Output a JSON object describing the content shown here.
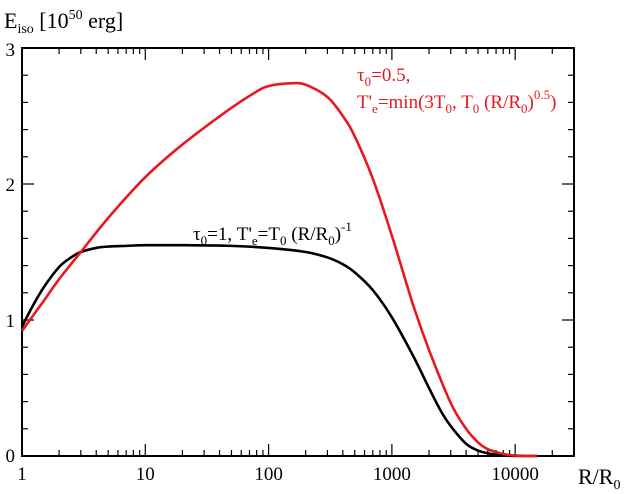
{
  "chart_data": {
    "type": "line",
    "xscale": "log",
    "xlim": [
      1,
      30000
    ],
    "ylim": [
      0,
      3
    ],
    "xlabel": {
      "main": "R/R",
      "sub": "0"
    },
    "ylabel": {
      "main": "E",
      "sub": "iso",
      "unit_pre": " [10",
      "sup": "50",
      "unit_post": " erg]"
    },
    "xticks": [
      {
        "value": 1,
        "label": "1"
      },
      {
        "value": 10,
        "label": "10"
      },
      {
        "value": 100,
        "label": "100"
      },
      {
        "value": 1000,
        "label": "1000"
      },
      {
        "value": 10000,
        "label": "10000"
      }
    ],
    "yticks": [
      {
        "value": 0,
        "label": "0"
      },
      {
        "value": 1,
        "label": "1"
      },
      {
        "value": 2,
        "label": "2"
      },
      {
        "value": 3,
        "label": "3"
      }
    ],
    "series": [
      {
        "name": "tau0=1, T'e=T0 (R/R0)^-1",
        "color": "#000000",
        "x": [
          1,
          1.2,
          1.5,
          2,
          2.5,
          3,
          4,
          5,
          7,
          10,
          20,
          50,
          100,
          200,
          300,
          400,
          500,
          700,
          1000,
          1500,
          2000,
          2500,
          3000,
          4000,
          5000,
          6000,
          7000,
          8000,
          9000,
          10000,
          12000,
          15000
        ],
        "values": [
          0.95,
          1.09,
          1.24,
          1.39,
          1.46,
          1.5,
          1.53,
          1.54,
          1.545,
          1.55,
          1.55,
          1.545,
          1.53,
          1.5,
          1.46,
          1.41,
          1.35,
          1.22,
          1.02,
          0.73,
          0.5,
          0.33,
          0.22,
          0.09,
          0.04,
          0.02,
          0.01,
          0.005,
          0.002,
          0.001,
          0.0,
          0.0
        ]
      },
      {
        "name": "tau0=0.5, T'e=min(3T0, T0 (R/R0)^0.5)",
        "color": "#e8191e",
        "x": [
          1,
          1.5,
          2,
          3,
          5,
          10,
          20,
          50,
          80,
          100,
          150,
          200,
          300,
          400,
          500,
          700,
          1000,
          1500,
          2000,
          3000,
          4000,
          5000,
          6000,
          7000,
          8000,
          9000,
          10000,
          12000,
          15000
        ],
        "values": [
          0.92,
          1.14,
          1.3,
          1.5,
          1.75,
          2.05,
          2.29,
          2.56,
          2.68,
          2.72,
          2.74,
          2.73,
          2.64,
          2.5,
          2.35,
          2.04,
          1.62,
          1.1,
          0.78,
          0.39,
          0.2,
          0.1,
          0.05,
          0.03,
          0.015,
          0.008,
          0.004,
          0.001,
          0.0
        ]
      }
    ],
    "annotations": {
      "red": {
        "line1": {
          "sym": "τ",
          "sub": "0",
          "rest": "=0.5,"
        },
        "line2": {
          "a": "T'",
          "a_sub": "e",
          "b": "=min(3T",
          "b_sub": "0",
          "c": ", T",
          "c_sub": "0",
          "d": " (R/R",
          "d_sub": "0",
          "e": ")",
          "e_sup": "0.5",
          "f": ")"
        }
      },
      "black": {
        "sym": "τ",
        "sub1": "0",
        "t1": "=1, T'",
        "sub2": "e",
        "t2": "=T",
        "sub3": "0",
        "t3": " (R/R",
        "sub4": "0",
        "t4": ")",
        "sup": "-1"
      }
    }
  }
}
